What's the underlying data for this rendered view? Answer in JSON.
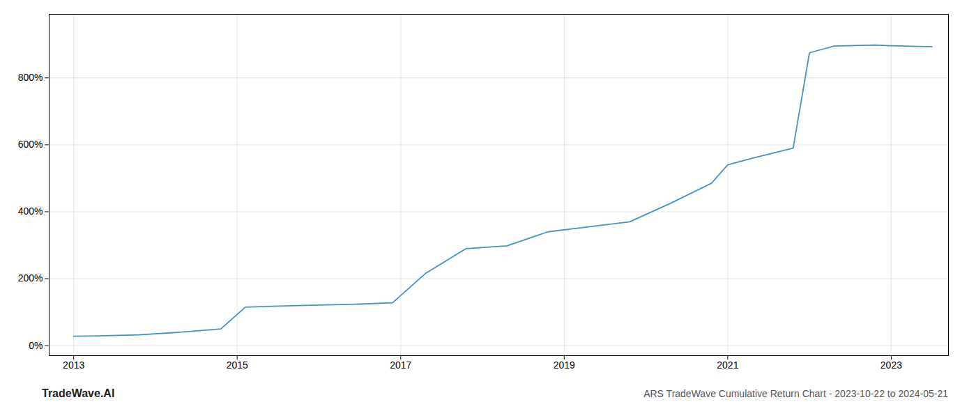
{
  "chart_data": {
    "type": "line",
    "annotations": [
      "TradeWave.AI",
      "ARS TradeWave Cumulative Return Chart - 2023-10-22 to 2024-05-21"
    ],
    "x": [
      2013.0,
      2013.3,
      2013.8,
      2014.3,
      2014.8,
      2015.1,
      2015.5,
      2016.0,
      2016.5,
      2016.9,
      2017.3,
      2017.8,
      2018.3,
      2018.8,
      2019.3,
      2019.8,
      2020.3,
      2020.8,
      2021.0,
      2021.3,
      2021.8,
      2022.0,
      2022.3,
      2022.8,
      2023.0,
      2023.5
    ],
    "values": [
      28,
      29,
      32,
      40,
      50,
      115,
      118,
      121,
      124,
      128,
      215,
      290,
      298,
      340,
      355,
      370,
      425,
      485,
      540,
      560,
      590,
      875,
      895,
      898,
      896,
      893
    ],
    "color": "#4393c3",
    "xlim": [
      2012.7,
      2023.7
    ],
    "xticks": [
      2013,
      2015,
      2017,
      2019,
      2021,
      2023
    ],
    "ylim": [
      -30,
      990
    ],
    "yticks": [
      {
        "value": 0,
        "label": "0%"
      },
      {
        "value": 200,
        "label": "200%"
      },
      {
        "value": 400,
        "label": "400%"
      },
      {
        "value": 600,
        "label": "600%"
      },
      {
        "value": 800,
        "label": "800%"
      }
    ],
    "grid": true
  }
}
